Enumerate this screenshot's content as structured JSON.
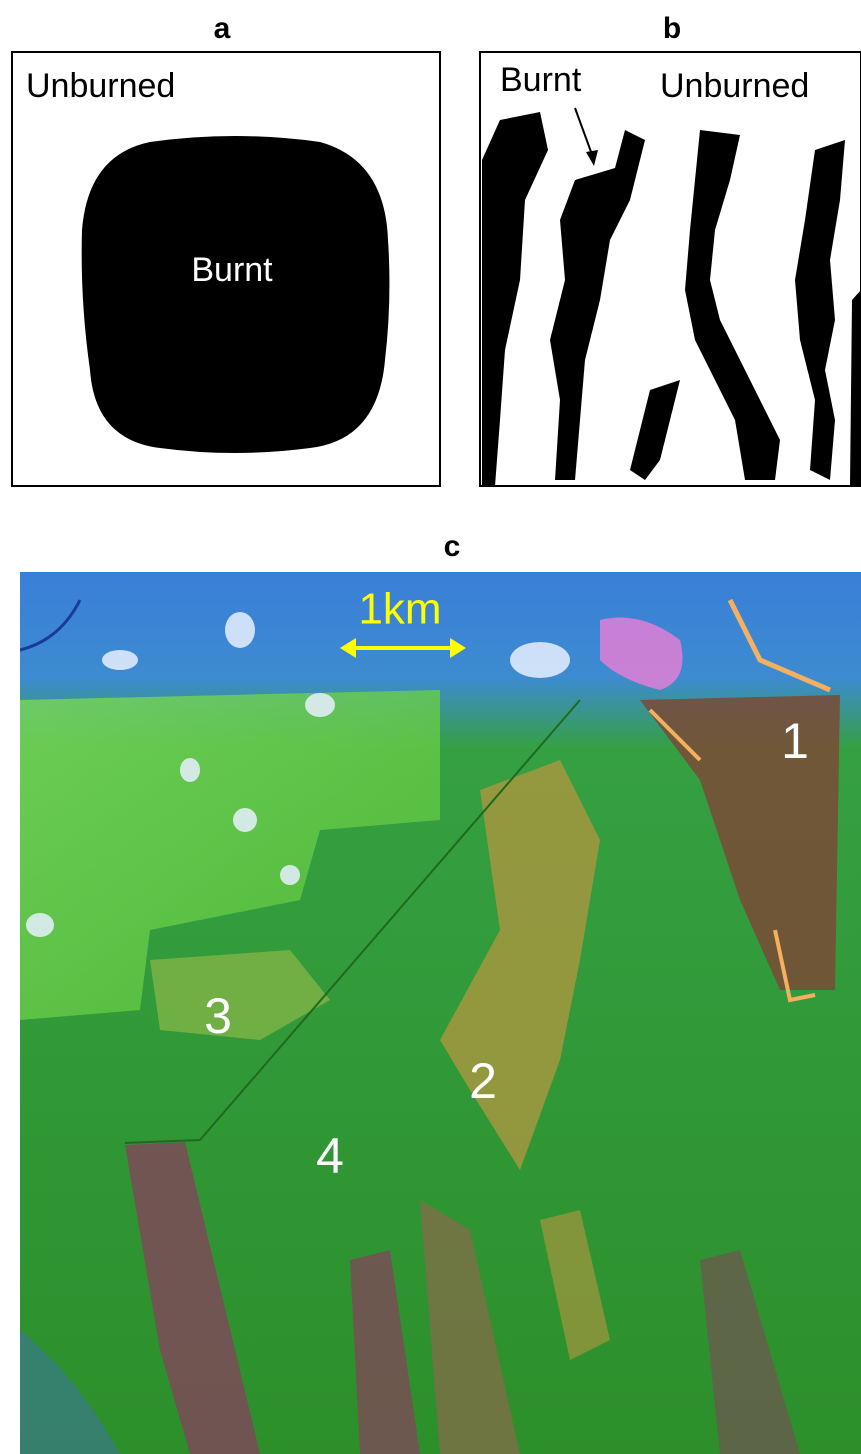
{
  "panels": [
    {
      "label": "a",
      "unburned_label": "Unburned",
      "burnt_label": "Burnt"
    },
    {
      "label": "b",
      "burnt_label": "Burnt",
      "unburned_label": "Unburned"
    },
    {
      "label": "c",
      "scale_bar": "1km",
      "region_labels": [
        "1",
        "2",
        "3",
        "4"
      ]
    }
  ]
}
